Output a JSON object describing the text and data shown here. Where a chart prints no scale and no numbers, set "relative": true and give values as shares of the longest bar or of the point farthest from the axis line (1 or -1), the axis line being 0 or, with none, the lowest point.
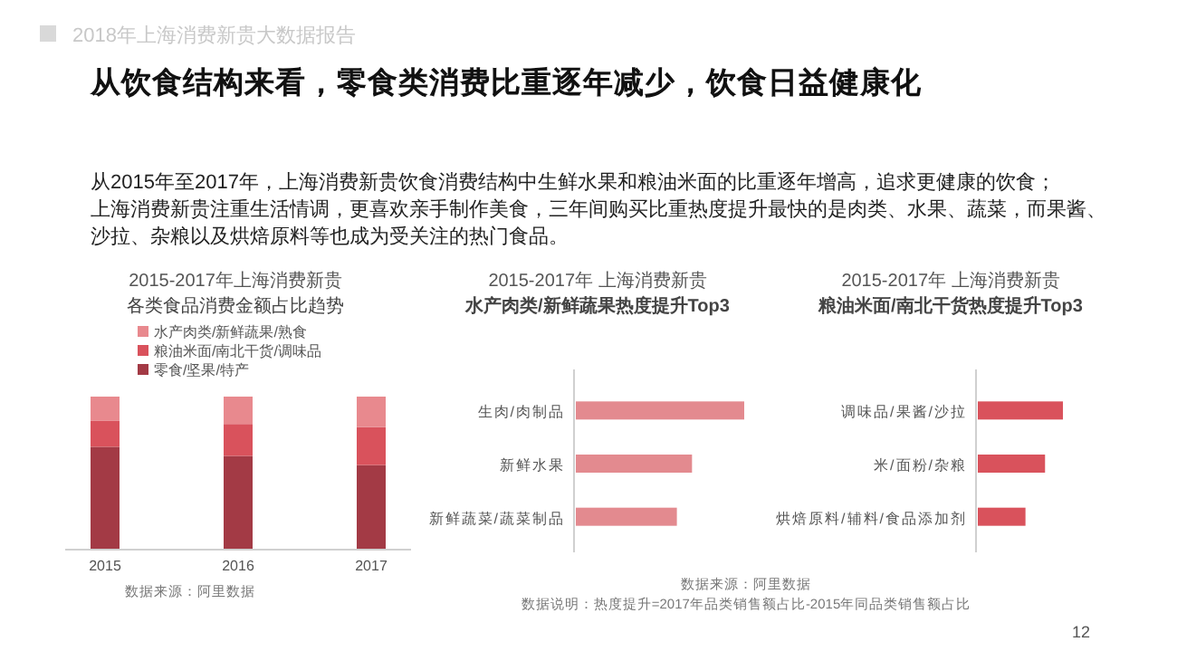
{
  "chart_data": [
    {
      "type": "other",
      "title": "从饮食结构来看，零食类消费比重逐年减少，饮食日益健康化",
      "annotations": [
        "2018年上海消费新贵大数据报告",
        "从2015年至2017年，上海消费新贵饮食消费结构中生鲜水果和粮油米面的比重逐年增高，追求更健康的饮食；",
        "上海消费新贵注重生活情调，更喜欢亲手制作美食，三年间购买比重热度提升最快的是肉类、水果、蔬菜，而果酱、",
        "沙拉、杂粮以及烘焙原料等也成为受关注的热门食品。",
        "12"
      ]
    },
    {
      "type": "bar",
      "title": "2015-2017年上海消费新贵",
      "subtitle": "各类食品消费金额占比趋势",
      "categories": [
        "2015",
        "2016",
        "2017"
      ],
      "stacked": true,
      "relative": true,
      "legend": "top left",
      "series": [
        {
          "name": "零食/坚果/特产",
          "color": "#a33a45",
          "values": [
            0.67,
            0.61,
            0.55
          ]
        },
        {
          "name": "粮油米面/南北干货/调味品",
          "color": "#d9525c",
          "values": [
            0.17,
            0.21,
            0.25
          ]
        },
        {
          "name": "水产肉类/新鲜蔬果/熟食",
          "color": "#e8898e",
          "values": [
            0.16,
            0.18,
            0.2
          ]
        }
      ],
      "annotations": [
        "数据来源：阿里数据"
      ]
    },
    {
      "type": "bar",
      "orientation": "horizontal",
      "relative": true,
      "title": "2015-2017年 上海消费新贵",
      "subtitle": "水产肉类/新鲜蔬果热度提升Top3",
      "categories": [
        "生肉/肉制品",
        "新鲜水果",
        "新鲜蔬菜/蔬菜制品"
      ],
      "values": [
        1,
        0.69,
        0.6
      ],
      "colors": [
        "#e38a8f",
        "#e38a8f",
        "#e38a8f"
      ],
      "annotations": [
        "数据来源：阿里数据",
        "数据说明：热度提升=2017年品类销售额占比-2015年同品类销售额占比"
      ]
    },
    {
      "type": "bar",
      "orientation": "horizontal",
      "relative": true,
      "title": "2015-2017年 上海消费新贵",
      "subtitle": "粮油米面/南北干货热度提升Top3",
      "categories": [
        "调味品/果酱/沙拉",
        "米/面粉/杂粮",
        "烘焙原料/辅料/食品添加剂"
      ],
      "values": [
        1,
        0.79,
        0.56
      ],
      "colors": [
        "#d9525c",
        "#d9525c",
        "#d9525c"
      ]
    }
  ]
}
